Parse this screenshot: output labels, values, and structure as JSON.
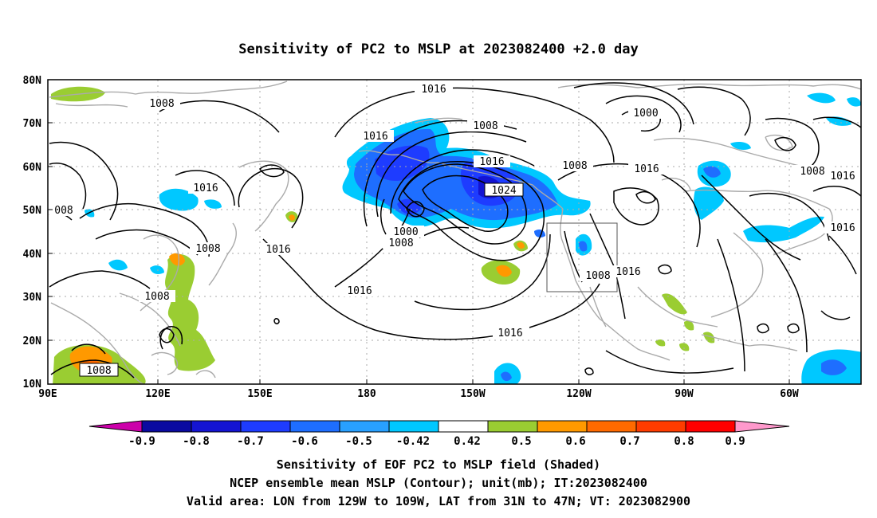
{
  "title": "Sensitivity of PC2 to MSLP at 2023082400 +2.0 day",
  "axes": {
    "lat_labels": [
      "80N",
      "70N",
      "60N",
      "50N",
      "40N",
      "30N",
      "20N",
      "10N"
    ],
    "lon_labels": [
      "90E",
      "120E",
      "150E",
      "180",
      "150W",
      "120W",
      "90W",
      "60W"
    ]
  },
  "contour_labels": [
    {
      "id": "c1",
      "text": "1016"
    },
    {
      "id": "c2",
      "text": "1008"
    },
    {
      "id": "c3",
      "text": "1008"
    },
    {
      "id": "c4",
      "text": "1000"
    },
    {
      "id": "c5",
      "text": "1016"
    },
    {
      "id": "c6",
      "text": "1016"
    },
    {
      "id": "c7",
      "text": "1008"
    },
    {
      "id": "c8",
      "text": "1016"
    },
    {
      "id": "c9",
      "text": "1024"
    },
    {
      "id": "c10",
      "text": "1008"
    },
    {
      "id": "c11",
      "text": "1016"
    },
    {
      "id": "c12",
      "text": "1008"
    },
    {
      "id": "c13",
      "text": "1016"
    },
    {
      "id": "c14",
      "text": "1000"
    },
    {
      "id": "c15",
      "text": "1008"
    },
    {
      "id": "c16",
      "text": "1016"
    },
    {
      "id": "c17",
      "text": "1016"
    },
    {
      "id": "c18",
      "text": "1008"
    },
    {
      "id": "c19",
      "text": "1016"
    },
    {
      "id": "c20",
      "text": "1008"
    },
    {
      "id": "c21",
      "text": "1016"
    },
    {
      "id": "c22",
      "text": "1008"
    },
    {
      "id": "c23",
      "text": "1016"
    },
    {
      "id": "c24",
      "text": "008"
    }
  ],
  "colorbar": {
    "colors": [
      "#0a0aa0",
      "#1414d2",
      "#1e3cff",
      "#1e6eff",
      "#28a0ff",
      "#00c8ff",
      "#ffffff",
      "#9acd32",
      "#ff9900",
      "#ff6a00",
      "#ff3c00",
      "#ff0000"
    ],
    "left_arrow_color": "#cc00aa",
    "right_arrow_color": "#ff99cc",
    "labels": [
      "-0.9",
      "-0.8",
      "-0.7",
      "-0.6",
      "-0.5",
      "-0.42",
      "0.42",
      "0.5",
      "0.6",
      "0.7",
      "0.8",
      "0.9"
    ]
  },
  "captions": [
    "Sensitivity of EOF PC2 to MSLP field (Shaded)",
    "NCEP ensemble mean MSLP (Contour); unit(mb); IT:2023082400",
    "Valid area: LON from 129W to 109W, LAT from 31N to 47N; VT: 2023082900"
  ]
}
